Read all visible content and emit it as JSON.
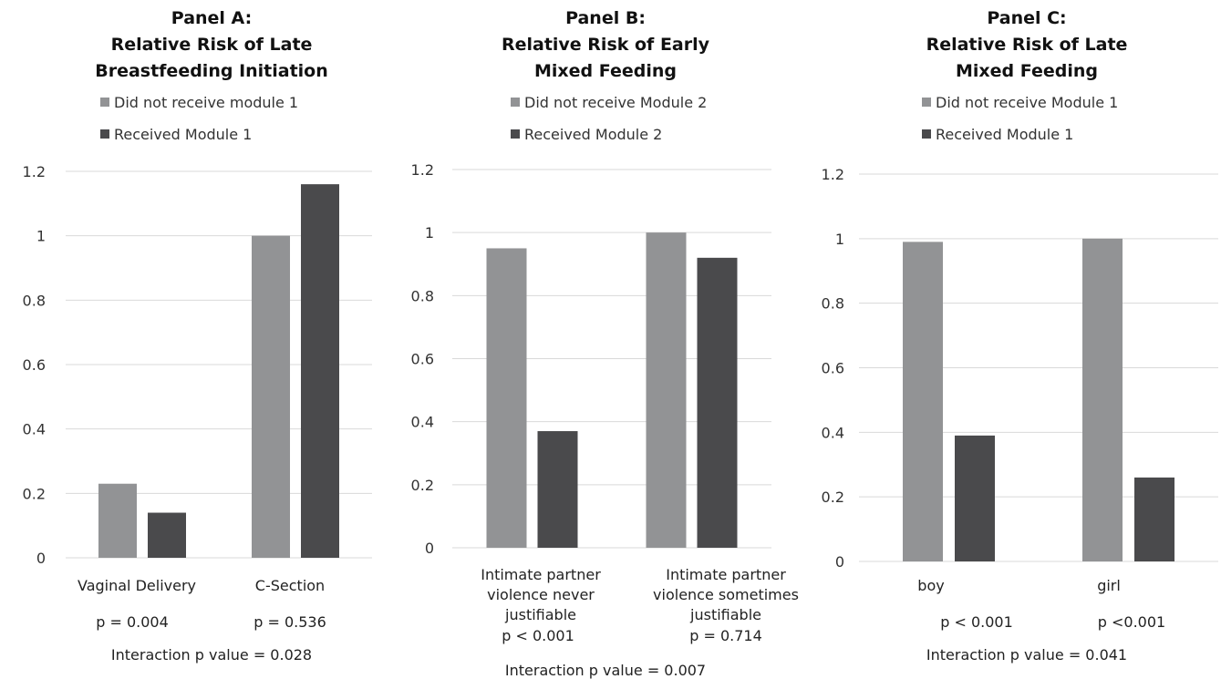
{
  "colors": {
    "series1": "#929395",
    "series2": "#4a4a4c",
    "grid": "#d9d9d9"
  },
  "chart_data": [
    {
      "type": "bar",
      "title": [
        "Panel A:",
        "Relative Risk of Late",
        "Breastfeeding Initiation"
      ],
      "categories": [
        [
          "Vaginal Delivery"
        ],
        [
          "C-Section"
        ]
      ],
      "series": [
        {
          "name": "Did not receive module 1",
          "values": [
            0.23,
            1.0
          ]
        },
        {
          "name": "Received Module 1",
          "values": [
            0.14,
            1.16
          ]
        }
      ],
      "yticks": [
        "0",
        "0.2",
        "0.4",
        "0.6",
        "0.8",
        "1",
        "1.2"
      ],
      "ylim": [
        0,
        1.2
      ],
      "grid": true,
      "legend_position": "top",
      "pvalues": [
        "p = 0.004",
        "p = 0.536"
      ],
      "interaction": "Interaction p value = 0.028"
    },
    {
      "type": "bar",
      "title": [
        "Panel B:",
        "Relative Risk of Early",
        "Mixed Feeding"
      ],
      "categories": [
        [
          "Intimate partner",
          "violence never",
          "justifiable"
        ],
        [
          "Intimate partner",
          "violence sometimes",
          "justifiable"
        ]
      ],
      "series": [
        {
          "name": "Did not receive Module 2",
          "values": [
            0.95,
            1.0
          ]
        },
        {
          "name": "Received Module 2",
          "values": [
            0.37,
            0.92
          ]
        }
      ],
      "yticks": [
        "0",
        "0.2",
        "0.4",
        "0.6",
        "0.8",
        "1",
        "1.2"
      ],
      "ylim": [
        0,
        1.2
      ],
      "grid": true,
      "legend_position": "top",
      "pvalues": [
        "p < 0.001",
        "p = 0.714"
      ],
      "interaction": "Interaction p value = 0.007"
    },
    {
      "type": "bar",
      "title": [
        "Panel C:",
        "Relative Risk of Late",
        "Mixed Feeding"
      ],
      "categories": [
        [
          "boy"
        ],
        [
          "girl"
        ]
      ],
      "series": [
        {
          "name": "Did not receive Module 1",
          "values": [
            0.99,
            1.0
          ]
        },
        {
          "name": "Received Module 1",
          "values": [
            0.39,
            0.26
          ]
        }
      ],
      "yticks": [
        "0",
        "0.2",
        "0.4",
        "0.6",
        "0.8",
        "1",
        "1.2"
      ],
      "ylim": [
        0,
        1.2
      ],
      "grid": true,
      "legend_position": "top",
      "pvalues": [
        "p < 0.001",
        "p <0.001"
      ],
      "interaction": "Interaction p value = 0.041"
    }
  ]
}
